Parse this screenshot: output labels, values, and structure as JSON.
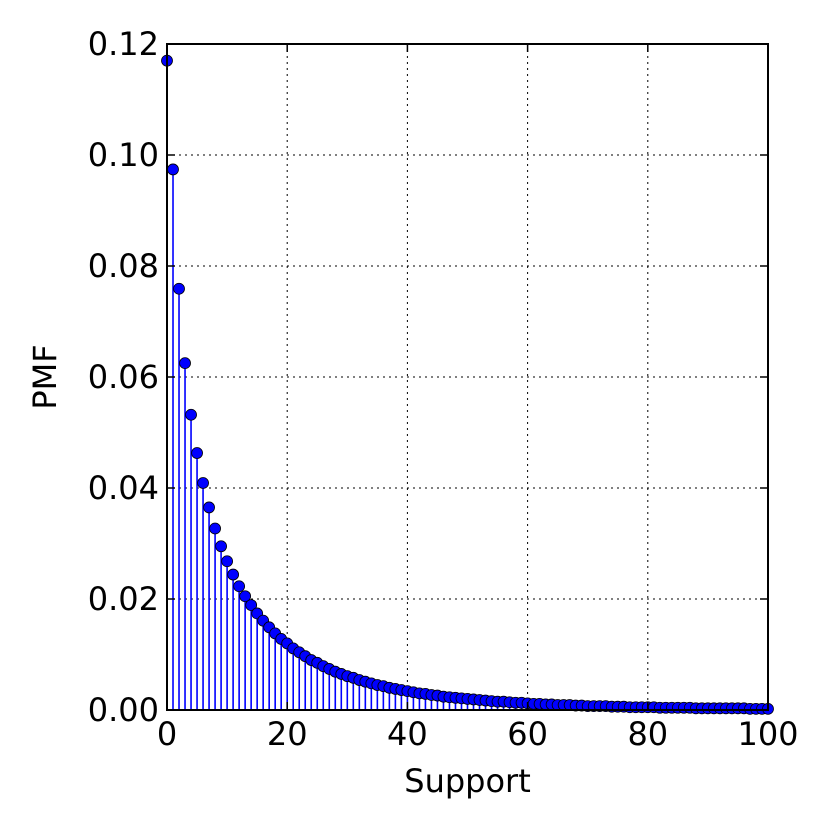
{
  "chart_data": {
    "type": "stem",
    "xlabel": "Support",
    "ylabel": "PMF",
    "xlim": [
      0,
      100
    ],
    "ylim": [
      0,
      0.12
    ],
    "xticks": [
      0,
      20,
      40,
      60,
      80,
      100
    ],
    "xtick_labels": [
      "0",
      "20",
      "40",
      "60",
      "80",
      "100"
    ],
    "yticks": [
      0.0,
      0.02,
      0.04,
      0.06,
      0.08,
      0.1,
      0.12
    ],
    "ytick_labels": [
      "0.00",
      "0.02",
      "0.04",
      "0.06",
      "0.08",
      "0.10",
      "0.12"
    ],
    "grid": true,
    "series_color": "#0000ff",
    "x": [
      0,
      1,
      2,
      3,
      4,
      5,
      6,
      7,
      8,
      9,
      10,
      11,
      12,
      13,
      14,
      15,
      16,
      17,
      18,
      19,
      20,
      21,
      22,
      23,
      24,
      25,
      26,
      27,
      28,
      29,
      30,
      31,
      32,
      33,
      34,
      35,
      36,
      37,
      38,
      39,
      40,
      41,
      42,
      43,
      44,
      45,
      46,
      47,
      48,
      49,
      50,
      51,
      52,
      53,
      54,
      55,
      56,
      57,
      58,
      59,
      60,
      61,
      62,
      63,
      64,
      65,
      66,
      67,
      68,
      69,
      70,
      71,
      72,
      73,
      74,
      75,
      76,
      77,
      78,
      79,
      80,
      81,
      82,
      83,
      84,
      85,
      86,
      87,
      88,
      89,
      90,
      91,
      92,
      93,
      94,
      95,
      96,
      97,
      98,
      99,
      100
    ],
    "y": [
      0.117,
      0.0974,
      0.0759,
      0.0625,
      0.0532,
      0.0463,
      0.0409,
      0.0365,
      0.0327,
      0.0295,
      0.0268,
      0.0244,
      0.0223,
      0.0205,
      0.0189,
      0.0174,
      0.0161,
      0.0149,
      0.0138,
      0.0128,
      0.012,
      0.0111,
      0.0104,
      0.0097,
      0.009,
      0.0085,
      0.0079,
      0.0074,
      0.0069,
      0.0065,
      0.0061,
      0.0058,
      0.0054,
      0.0051,
      0.0048,
      0.0045,
      0.0043,
      0.004,
      0.0038,
      0.0036,
      0.0034,
      0.0032,
      0.003,
      0.0029,
      0.0027,
      0.0026,
      0.0024,
      0.0023,
      0.0022,
      0.0021,
      0.002,
      0.0019,
      0.0018,
      0.0017,
      0.0016,
      0.0015,
      0.0015,
      0.0014,
      0.0013,
      0.0013,
      0.0012,
      0.0011,
      0.0011,
      0.001,
      0.001,
      0.0009,
      0.0009,
      0.0009,
      0.0008,
      0.0008,
      0.0007,
      0.0007,
      0.0007,
      0.0007,
      0.0006,
      0.0006,
      0.0006,
      0.0005,
      0.0005,
      0.0005,
      0.0005,
      0.0005,
      0.0004,
      0.0004,
      0.0004,
      0.0004,
      0.0004,
      0.0004,
      0.0003,
      0.0003,
      0.0003,
      0.0003,
      0.0003,
      0.0003,
      0.0003,
      0.0003,
      0.0003,
      0.0002,
      0.0002,
      0.0002,
      0.0002
    ]
  }
}
